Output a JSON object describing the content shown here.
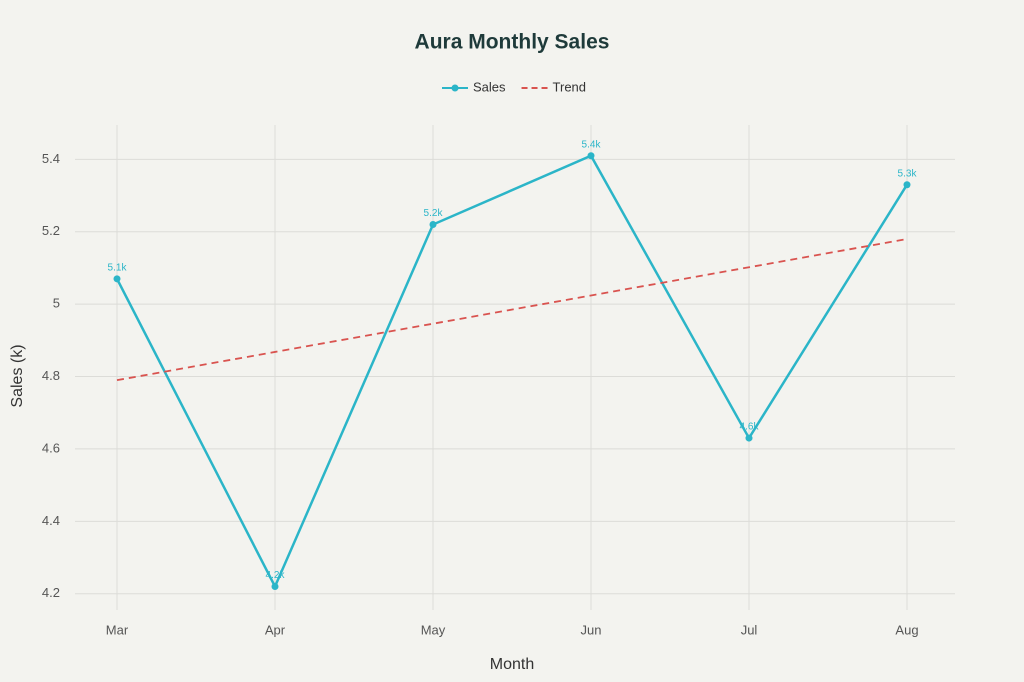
{
  "chart_data": {
    "type": "line",
    "title": "Aura Monthly Sales",
    "x_label": "Month",
    "y_label": "Sales (k)",
    "categories": [
      "Mar",
      "Apr",
      "May",
      "Jun",
      "Jul",
      "Aug"
    ],
    "series": [
      {
        "name": "Sales",
        "color": "#2bb5c8",
        "line_style": "solid",
        "markers": true,
        "values": [
          5.07,
          4.22,
          5.22,
          5.41,
          4.63,
          5.33
        ],
        "value_labels": [
          "5.1k",
          "4.2k",
          "5.2k",
          "5.4k",
          "4.6k",
          "5.3k"
        ]
      },
      {
        "name": "Trend",
        "color": "#d9534f",
        "line_style": "dashed",
        "markers": false,
        "values": [
          4.79,
          4.868,
          4.946,
          5.024,
          5.102,
          5.18
        ]
      }
    ],
    "ylim": [
      4.155,
      5.495
    ],
    "yticks": [
      4.2,
      4.4,
      4.6,
      4.8,
      5.0,
      5.2,
      5.4
    ],
    "grid": true,
    "legend": "top"
  }
}
